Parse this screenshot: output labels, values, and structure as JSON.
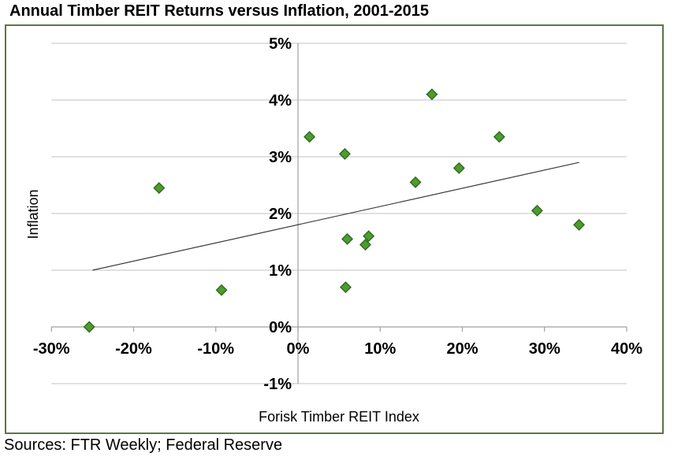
{
  "chart": {
    "title": "Annual Timber REIT Returns versus Inflation, 2001-2015",
    "sources": "Sources: FTR Weekly; Federal Reserve",
    "x_axis": {
      "title": "Forisk Timber REIT Index"
    },
    "y_axis": {
      "title": "Inflation"
    }
  },
  "chart_data": {
    "type": "scatter",
    "title": "Annual Timber REIT Returns versus Inflation, 2001-2015",
    "xlabel": "Forisk Timber REIT Index",
    "ylabel": "Inflation",
    "xlim": [
      -30,
      40
    ],
    "ylim": [
      -1,
      5
    ],
    "x_tick_values": [
      -30,
      -20,
      -10,
      0,
      10,
      20,
      30,
      40
    ],
    "x_tick_labels": [
      "-30%",
      "-20%",
      "-10%",
      "0%",
      "10%",
      "20%",
      "30%",
      "40%"
    ],
    "y_tick_values": [
      5,
      4,
      3,
      2,
      1,
      0,
      -1
    ],
    "y_tick_labels": [
      "5%",
      "4%",
      "3%",
      "2%",
      "1%",
      "0%",
      "-1%"
    ],
    "grid": "horizontal",
    "legend": "none",
    "units": "percent",
    "points": [
      [
        -25.4,
        0.0
      ],
      [
        -16.9,
        2.45
      ],
      [
        -9.3,
        0.65
      ],
      [
        1.4,
        3.35
      ],
      [
        5.7,
        3.05
      ],
      [
        5.8,
        0.7
      ],
      [
        6.0,
        1.55
      ],
      [
        8.2,
        1.45
      ],
      [
        8.6,
        1.6
      ],
      [
        14.3,
        2.55
      ],
      [
        16.3,
        4.1
      ],
      [
        19.6,
        2.8
      ],
      [
        24.5,
        3.35
      ],
      [
        29.1,
        2.05
      ],
      [
        34.2,
        1.8
      ]
    ],
    "trendline": {
      "x1": -25.0,
      "y1": 1.0,
      "x2": 34.2,
      "y2": 2.9
    },
    "marker": {
      "shape": "diamond",
      "size": 13
    },
    "colors": {
      "marker_fill": "#4e9b2f",
      "marker_stroke": "#2e6b20",
      "gridline": "#c2c2c2",
      "axis": "#a0a0a0",
      "trendline": "#3a3a3a",
      "frame_border": "#5e7547",
      "text": "#000000"
    }
  }
}
